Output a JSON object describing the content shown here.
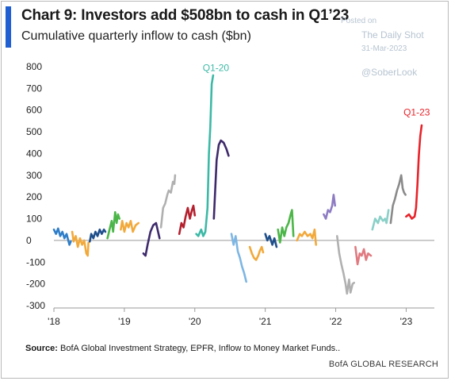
{
  "header": {
    "title": "Chart 9: Investors add $508bn to cash in Q1’23",
    "subtitle": "Cumulative quarterly inflow to cash ($bn)"
  },
  "watermark": {
    "posted": "Posted on",
    "site": "The Daily Shot",
    "date": "31-Mar-2023",
    "handle": "@SoberLook"
  },
  "footer": {
    "source_label": "Source:",
    "source_text": "BofA Global Investment Strategy, EPFR, Inflow to Money Market Funds..",
    "brand": "BofA GLOBAL RESEARCH"
  },
  "chart_data": {
    "type": "line",
    "title": "Chart 9: Investors add $508bn to cash in Q1’23",
    "subtitle": "Cumulative quarterly inflow to cash ($bn)",
    "xlabel": "",
    "ylabel": "",
    "xlim": [
      2018.0,
      2023.4
    ],
    "ylim": [
      -300,
      800
    ],
    "yticks": [
      -300,
      -200,
      -100,
      0,
      100,
      200,
      300,
      400,
      500,
      600,
      700,
      800
    ],
    "xticks": [
      {
        "value": 2018.0,
        "label": "'18"
      },
      {
        "value": 2019.0,
        "label": "'19"
      },
      {
        "value": 2020.0,
        "label": "'20"
      },
      {
        "value": 2021.0,
        "label": "'21"
      },
      {
        "value": 2022.0,
        "label": "'22"
      },
      {
        "value": 2023.0,
        "label": "'23"
      }
    ],
    "grid": false,
    "zero_line": true,
    "annotations": [
      {
        "text": "Q1-20",
        "x": 2020.3,
        "y": 780,
        "color": "#3cb9a6"
      },
      {
        "text": "Q1-23",
        "x": 2023.15,
        "y": 575,
        "color": "#e8232a"
      }
    ],
    "series": [
      {
        "color": "#2f7ec8",
        "points": [
          [
            2018.0,
            50
          ],
          [
            2018.03,
            30
          ],
          [
            2018.06,
            55
          ],
          [
            2018.09,
            20
          ],
          [
            2018.12,
            40
          ],
          [
            2018.15,
            10
          ],
          [
            2018.18,
            30
          ],
          [
            2018.22,
            -20
          ],
          [
            2018.24,
            -5
          ]
        ]
      },
      {
        "color": "#f2a93b",
        "points": [
          [
            2018.26,
            40
          ],
          [
            2018.28,
            -5
          ],
          [
            2018.31,
            20
          ],
          [
            2018.34,
            -30
          ],
          [
            2018.37,
            10
          ],
          [
            2018.4,
            -20
          ],
          [
            2018.43,
            0
          ],
          [
            2018.46,
            -60
          ],
          [
            2018.48,
            -70
          ],
          [
            2018.49,
            -10
          ]
        ]
      },
      {
        "color": "#1f4f8b",
        "points": [
          [
            2018.51,
            -5
          ],
          [
            2018.53,
            30
          ],
          [
            2018.56,
            10
          ],
          [
            2018.59,
            40
          ],
          [
            2018.62,
            20
          ],
          [
            2018.65,
            50
          ],
          [
            2018.68,
            30
          ],
          [
            2018.71,
            50
          ],
          [
            2018.73,
            40
          ]
        ]
      },
      {
        "color": "#4cb648",
        "points": [
          [
            2018.76,
            10
          ],
          [
            2018.79,
            50
          ],
          [
            2018.82,
            90
          ],
          [
            2018.84,
            40
          ],
          [
            2018.87,
            130
          ],
          [
            2018.89,
            80
          ],
          [
            2018.91,
            120
          ],
          [
            2018.93,
            100
          ]
        ]
      },
      {
        "color": "#f2a93b",
        "points": [
          [
            2018.95,
            50
          ],
          [
            2018.97,
            90
          ],
          [
            2019.0,
            40
          ],
          [
            2019.03,
            80
          ],
          [
            2019.06,
            60
          ],
          [
            2019.09,
            90
          ],
          [
            2019.12,
            40
          ],
          [
            2019.16,
            70
          ],
          [
            2019.2,
            80
          ]
        ]
      },
      {
        "color": "#3e2a6b",
        "points": [
          [
            2019.27,
            -60
          ],
          [
            2019.3,
            -70
          ],
          [
            2019.33,
            -20
          ],
          [
            2019.37,
            40
          ],
          [
            2019.41,
            70
          ],
          [
            2019.45,
            80
          ],
          [
            2019.5,
            10
          ]
        ]
      },
      {
        "color": "#b0b0b0",
        "points": [
          [
            2019.52,
            60
          ],
          [
            2019.55,
            150
          ],
          [
            2019.58,
            170
          ],
          [
            2019.61,
            210
          ],
          [
            2019.63,
            230
          ],
          [
            2019.66,
            220
          ],
          [
            2019.69,
            270
          ],
          [
            2019.71,
            260
          ],
          [
            2019.72,
            300
          ]
        ]
      },
      {
        "color": "#b5202e",
        "points": [
          [
            2019.78,
            30
          ],
          [
            2019.81,
            80
          ],
          [
            2019.84,
            60
          ],
          [
            2019.87,
            110
          ],
          [
            2019.9,
            150
          ],
          [
            2019.93,
            100
          ],
          [
            2019.96,
            140
          ],
          [
            2019.98,
            160
          ],
          [
            2020.0,
            115
          ]
        ]
      },
      {
        "color": "#3cb9a6",
        "points": [
          [
            2020.02,
            30
          ],
          [
            2020.05,
            20
          ],
          [
            2020.09,
            50
          ],
          [
            2020.12,
            20
          ],
          [
            2020.15,
            40
          ],
          [
            2020.18,
            150
          ],
          [
            2020.2,
            400
          ],
          [
            2020.22,
            520
          ],
          [
            2020.24,
            720
          ],
          [
            2020.26,
            760
          ]
        ]
      },
      {
        "color": "#3e2a6b",
        "points": [
          [
            2020.27,
            100
          ],
          [
            2020.29,
            240
          ],
          [
            2020.31,
            370
          ],
          [
            2020.34,
            440
          ],
          [
            2020.37,
            460
          ],
          [
            2020.41,
            450
          ],
          [
            2020.45,
            420
          ],
          [
            2020.48,
            390
          ]
        ]
      },
      {
        "color": "#7db6e3",
        "points": [
          [
            2020.52,
            30
          ],
          [
            2020.55,
            -20
          ],
          [
            2020.58,
            20
          ],
          [
            2020.61,
            -50
          ],
          [
            2020.64,
            -80
          ],
          [
            2020.67,
            -120
          ],
          [
            2020.7,
            -150
          ],
          [
            2020.73,
            -190
          ]
        ]
      },
      {
        "color": "#f2a93b",
        "points": [
          [
            2020.78,
            -30
          ],
          [
            2020.81,
            -60
          ],
          [
            2020.84,
            -80
          ],
          [
            2020.87,
            -90
          ],
          [
            2020.9,
            -70
          ],
          [
            2020.92,
            -50
          ],
          [
            2020.95,
            -30
          ],
          [
            2020.97,
            -55
          ]
        ]
      },
      {
        "color": "#1f4f8b",
        "points": [
          [
            2021.0,
            30
          ],
          [
            2021.03,
            0
          ],
          [
            2021.06,
            20
          ],
          [
            2021.1,
            -20
          ],
          [
            2021.13,
            10
          ],
          [
            2021.16,
            -30
          ]
        ]
      },
      {
        "color": "#4cb648",
        "points": [
          [
            2021.18,
            50
          ],
          [
            2021.21,
            -10
          ],
          [
            2021.24,
            60
          ],
          [
            2021.27,
            20
          ],
          [
            2021.3,
            60
          ],
          [
            2021.33,
            80
          ],
          [
            2021.36,
            120
          ],
          [
            2021.38,
            140
          ],
          [
            2021.4,
            20
          ]
        ]
      },
      {
        "color": "#f2a93b",
        "points": [
          [
            2021.45,
            0
          ],
          [
            2021.49,
            30
          ],
          [
            2021.52,
            20
          ],
          [
            2021.56,
            40
          ],
          [
            2021.6,
            20
          ],
          [
            2021.64,
            30
          ],
          [
            2021.67,
            10
          ],
          [
            2021.7,
            50
          ],
          [
            2021.72,
            -20
          ]
        ]
      },
      {
        "color": "#8e7cc3",
        "points": [
          [
            2021.83,
            120
          ],
          [
            2021.86,
            100
          ],
          [
            2021.89,
            140
          ],
          [
            2021.92,
            130
          ],
          [
            2021.95,
            160
          ],
          [
            2021.97,
            210
          ],
          [
            2021.99,
            160
          ]
        ]
      },
      {
        "color": "#b0b0b0",
        "points": [
          [
            2022.02,
            20
          ],
          [
            2022.05,
            -60
          ],
          [
            2022.08,
            -110
          ],
          [
            2022.11,
            -150
          ],
          [
            2022.14,
            -200
          ],
          [
            2022.16,
            -245
          ],
          [
            2022.19,
            -180
          ],
          [
            2022.21,
            -240
          ],
          [
            2022.24,
            -200
          ],
          [
            2022.26,
            -195
          ]
        ]
      },
      {
        "color": "#e07a80",
        "points": [
          [
            2022.28,
            -30
          ],
          [
            2022.31,
            -110
          ],
          [
            2022.34,
            -60
          ],
          [
            2022.37,
            -70
          ],
          [
            2022.4,
            -40
          ],
          [
            2022.43,
            -90
          ],
          [
            2022.46,
            -60
          ],
          [
            2022.5,
            -70
          ]
        ]
      },
      {
        "color": "#89d0c8",
        "points": [
          [
            2022.52,
            50
          ],
          [
            2022.56,
            100
          ],
          [
            2022.6,
            80
          ],
          [
            2022.63,
            110
          ],
          [
            2022.67,
            90
          ],
          [
            2022.7,
            100
          ],
          [
            2022.72,
            80
          ],
          [
            2022.75,
            140
          ]
        ]
      },
      {
        "color": "#8a8a8a",
        "points": [
          [
            2022.78,
            80
          ],
          [
            2022.81,
            160
          ],
          [
            2022.84,
            190
          ],
          [
            2022.87,
            230
          ],
          [
            2022.9,
            260
          ],
          [
            2022.93,
            300
          ],
          [
            2022.95,
            240
          ],
          [
            2022.97,
            220
          ],
          [
            2022.99,
            210
          ]
        ]
      },
      {
        "color": "#e8232a",
        "points": [
          [
            2023.0,
            110
          ],
          [
            2023.04,
            120
          ],
          [
            2023.08,
            100
          ],
          [
            2023.12,
            110
          ],
          [
            2023.14,
            150
          ],
          [
            2023.16,
            260
          ],
          [
            2023.18,
            390
          ],
          [
            2023.2,
            480
          ],
          [
            2023.22,
            530
          ]
        ]
      }
    ]
  }
}
